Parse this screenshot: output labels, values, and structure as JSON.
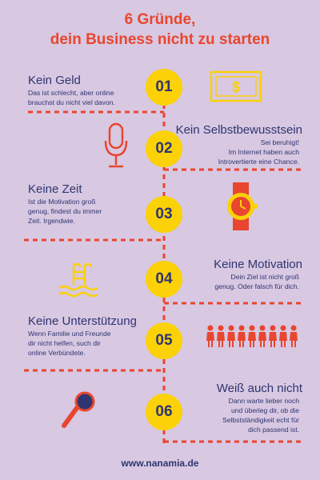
{
  "title": {
    "line1": "6 Gründe,",
    "line2": "dein Business nicht zu starten"
  },
  "reasons": [
    {
      "number": "01",
      "heading": "Kein Geld",
      "lines": [
        "Das ist schlecht, aber online",
        "brauchst du nicht viel davon."
      ],
      "icon": "banknote-icon"
    },
    {
      "number": "02",
      "heading": "Kein Selbstbewusstsein",
      "lines": [
        "Sei beruhigt!",
        "Im Internet haben auch",
        "Introvertierte eine Chance."
      ],
      "icon": "microphone-icon"
    },
    {
      "number": "03",
      "heading": "Keine Zeit",
      "lines": [
        "Ist die Motivation groß",
        "genug, findest du immer",
        "Zeit. Irgendwie."
      ],
      "icon": "wristwatch-icon"
    },
    {
      "number": "04",
      "heading": "Keine Motivation",
      "lines": [
        "Dein Ziel ist nicht groß",
        "genug. Oder falsch für dich."
      ],
      "icon": "swimming-pool-icon"
    },
    {
      "number": "05",
      "heading": "Keine Unterstützung",
      "lines": [
        "Wenn Familie und Freunde",
        "dir nicht helfen, such dir",
        "online Verbündete."
      ],
      "icon": "people-group-icon"
    },
    {
      "number": "06",
      "heading": "Weiß auch nicht",
      "lines": [
        "Dann warte lieber noch",
        "und überleg dir, ob die",
        "Selbstständigkeit echt für",
        "dich passend ist."
      ],
      "icon": "magnifying-glass-icon"
    }
  ],
  "footer": {
    "url": "www.nanamia.de"
  },
  "colors": {
    "background": "#d8c8e2",
    "accent_red": "#e8462f",
    "yellow": "#fbd108",
    "navy": "#2e3570",
    "dash_red": "#e8462f"
  }
}
